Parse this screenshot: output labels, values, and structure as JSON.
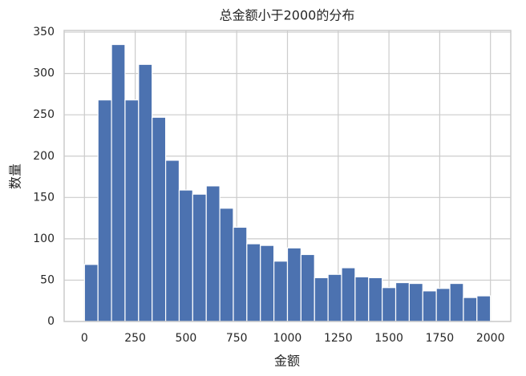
{
  "chart_data": {
    "type": "histogram",
    "title": "总金额小于2000的分布",
    "x_label": "金额",
    "y_label": "数量",
    "bins": [
      0,
      66.67,
      133.33,
      200,
      266.67,
      333.33,
      400,
      466.67,
      533.33,
      600,
      666.67,
      733.33,
      800,
      866.67,
      933.33,
      1000,
      1066.67,
      1133.33,
      1200,
      1266.67,
      1333.33,
      1400,
      1466.67,
      1533.33,
      1600,
      1666.67,
      1733.33,
      1800,
      1866.67,
      1933.33,
      2000
    ],
    "values": [
      69,
      268,
      335,
      268,
      311,
      247,
      195,
      159,
      154,
      164,
      137,
      114,
      94,
      92,
      73,
      89,
      81,
      53,
      57,
      65,
      54,
      53,
      41,
      47,
      46,
      37,
      40,
      46,
      29,
      31
    ],
    "color": "#4c72b0",
    "xlim": [
      -100,
      2100
    ],
    "xticks": [
      0,
      250,
      500,
      750,
      1000,
      1250,
      1500,
      1750,
      2000
    ],
    "ylim": [
      0,
      352
    ],
    "yticks": [
      0,
      50,
      100,
      150,
      200,
      250,
      300,
      350
    ],
    "grid": true
  }
}
